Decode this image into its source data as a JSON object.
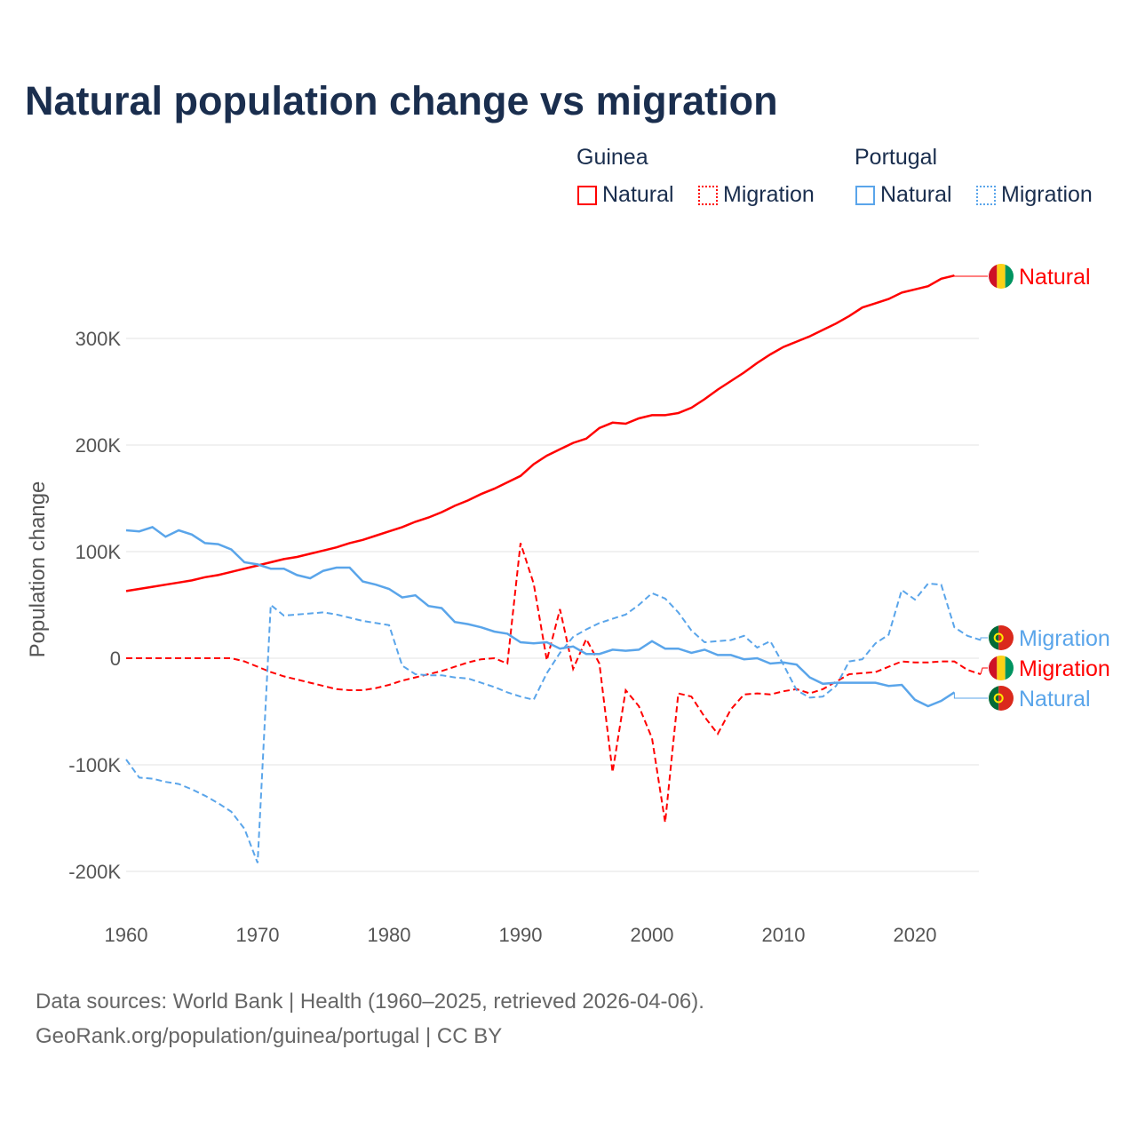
{
  "chart_data": {
    "type": "line",
    "title": "Natural population change vs migration",
    "ylabel": "Population change",
    "xlabel": "",
    "ylim": [
      -200000,
      300000
    ],
    "yticks": [
      {
        "v": 300000,
        "label": "300K"
      },
      {
        "v": 200000,
        "label": "200K"
      },
      {
        "v": 100000,
        "label": "100K"
      },
      {
        "v": 0,
        "label": "0"
      },
      {
        "v": -100000,
        "label": "-100K"
      },
      {
        "v": -200000,
        "label": "-200K"
      }
    ],
    "xticks": [
      1960,
      1970,
      1980,
      1990,
      2000,
      2010,
      2020
    ],
    "grid": true,
    "legend": {
      "groups": [
        {
          "name": "Guinea",
          "items": [
            "Natural",
            "Migration"
          ]
        },
        {
          "name": "Portugal",
          "items": [
            "Natural",
            "Migration"
          ]
        }
      ],
      "placement": "top-right"
    },
    "series": [
      {
        "country": "Guinea",
        "name": "Natural",
        "color": "#ff0000",
        "dash": "solid",
        "end_label": "Natural",
        "start": 1960,
        "values": [
          63,
          65,
          67,
          69,
          71,
          73,
          76,
          78,
          81,
          84,
          87,
          90,
          93,
          95,
          98,
          101,
          104,
          108,
          111,
          115,
          119,
          123,
          128,
          132,
          137,
          143,
          148,
          154,
          159,
          165,
          171,
          182,
          190,
          196,
          202,
          206,
          216,
          221,
          220,
          225,
          228,
          228,
          230,
          235,
          243,
          252,
          260,
          268,
          277,
          285,
          292,
          297,
          302,
          308,
          314,
          321,
          329,
          333,
          337,
          343,
          346,
          349,
          356,
          359
        ]
      },
      {
        "country": "Guinea",
        "name": "Migration",
        "color": "#ff0000",
        "dash": "dashed",
        "end_label": "Migration",
        "start": 1960,
        "values": [
          0,
          0,
          0,
          0,
          0,
          0,
          0,
          0,
          0,
          -3,
          -8,
          -13,
          -17,
          -20,
          -23,
          -26,
          -29,
          -30,
          -30,
          -28,
          -25,
          -21,
          -18,
          -15,
          -12,
          -8,
          -4,
          -1,
          0,
          -5,
          108,
          70,
          -2,
          46,
          -10,
          18,
          -5,
          -107,
          -30,
          -45,
          -75,
          -154,
          -33,
          -36,
          -55,
          -71,
          -48,
          -34,
          -33,
          -34,
          -31,
          -29,
          -33,
          -29,
          -22,
          -15,
          -14,
          -13,
          -8,
          -3,
          -4,
          -4,
          -3,
          -3,
          -11,
          -15
        ]
      },
      {
        "country": "Portugal",
        "name": "Natural",
        "color": "#5aa5ea",
        "dash": "solid",
        "end_label": "Natural",
        "start": 1960,
        "values": [
          120,
          119,
          123,
          114,
          120,
          116,
          108,
          107,
          102,
          90,
          88,
          84,
          84,
          78,
          75,
          82,
          85,
          85,
          72,
          69,
          65,
          57,
          59,
          49,
          47,
          34,
          32,
          29,
          25,
          23,
          15,
          14,
          15,
          9,
          11,
          4,
          4,
          8,
          7,
          8,
          16,
          9,
          9,
          5,
          8,
          3,
          3,
          -1,
          0,
          -5,
          -4,
          -6,
          -18,
          -24,
          -23,
          -23,
          -23,
          -23,
          -26,
          -25,
          -39,
          -45,
          -40,
          -32
        ]
      },
      {
        "country": "Portugal",
        "name": "Migration",
        "color": "#5aa5ea",
        "dash": "dashed",
        "end_label": "Migration",
        "start": 1960,
        "values": [
          -95,
          -112,
          -113,
          -116,
          -118,
          -123,
          -129,
          -136,
          -144,
          -160,
          -192,
          50,
          40,
          41,
          42,
          43,
          41,
          38,
          35,
          33,
          31,
          -7,
          -15,
          -16,
          -16,
          -18,
          -19,
          -23,
          -27,
          -32,
          -36,
          -39,
          -14,
          5,
          20,
          27,
          33,
          37,
          41,
          50,
          61,
          56,
          43,
          26,
          15,
          16,
          17,
          21,
          10,
          16,
          -6,
          -30,
          -37,
          -36,
          -26,
          -3,
          -1,
          14,
          22,
          64,
          55,
          70,
          69,
          29,
          21,
          17
        ]
      }
    ],
    "value_unit": "thousands"
  },
  "footer": {
    "line1": "Data sources: World Bank | Health (1960–2025, retrieved 2026-04-06).",
    "line2": "GeoRank.org/population/guinea/portugal | CC BY"
  }
}
